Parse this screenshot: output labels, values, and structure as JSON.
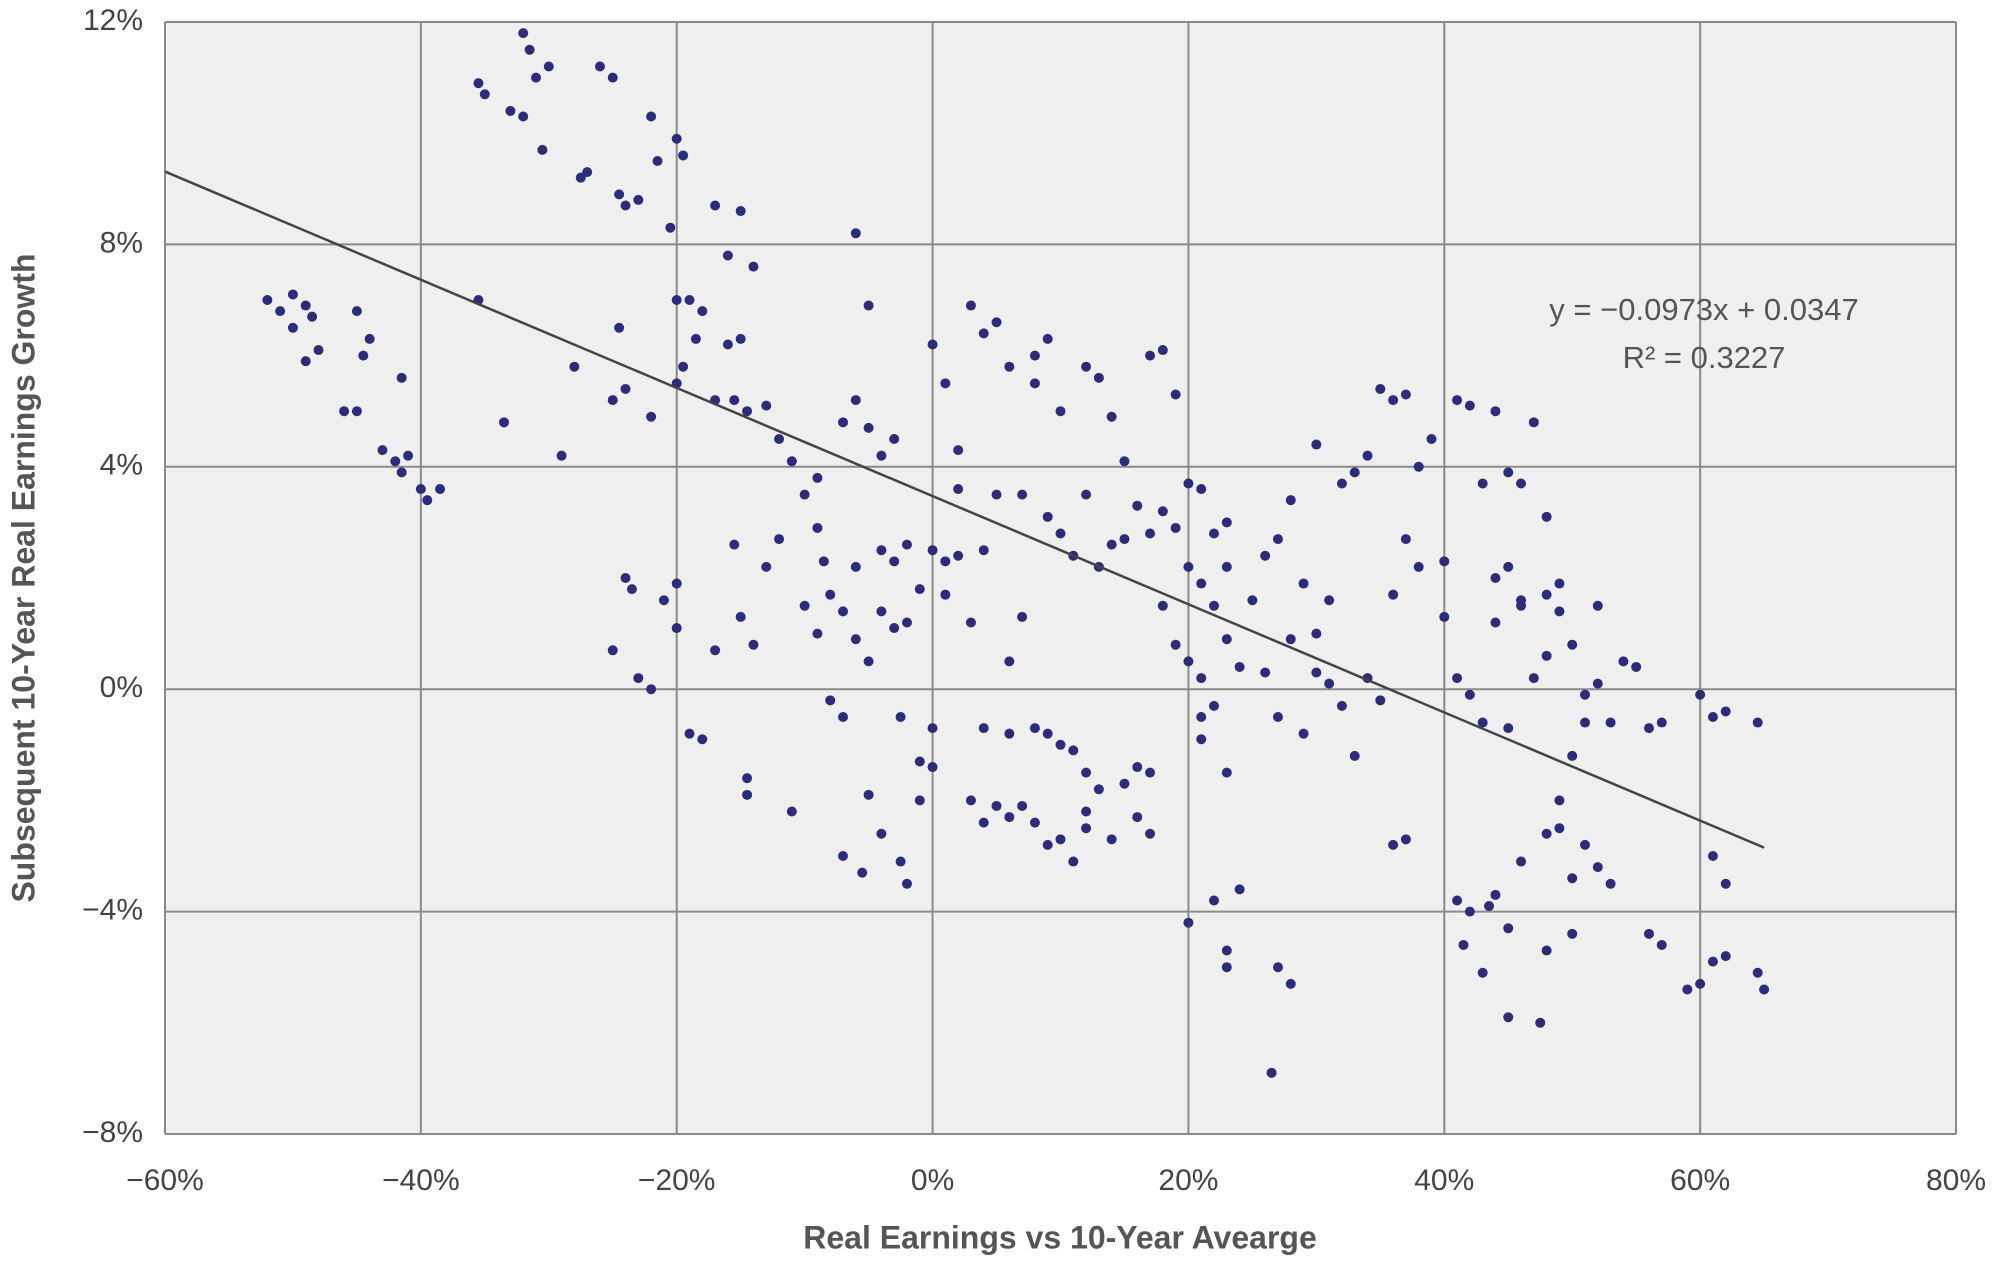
{
  "chart_data": {
    "type": "scatter",
    "xlabel": "Real Earnings vs 10-Year Avearge",
    "ylabel": "Subsequent 10-Year Real Earnings Growth",
    "annotations": [
      "y = −0.0973x + 0.0347",
      "R² = 0.3227"
    ],
    "color": "#2b2d7c",
    "grid": true,
    "xlim": [
      -60,
      80
    ],
    "ylim": [
      -8,
      12
    ],
    "xticks": [
      {
        "value": -60,
        "label": "−60%"
      },
      {
        "value": -40,
        "label": "−40%"
      },
      {
        "value": -20,
        "label": "−20%"
      },
      {
        "value": 0,
        "label": "0%"
      },
      {
        "value": 20,
        "label": "20%"
      },
      {
        "value": 40,
        "label": "40%"
      },
      {
        "value": 60,
        "label": "60%"
      },
      {
        "value": 80,
        "label": "80%"
      }
    ],
    "yticks": [
      {
        "value": -8,
        "label": "−8%"
      },
      {
        "value": -4,
        "label": "−4%"
      },
      {
        "value": 0,
        "label": "0%"
      },
      {
        "value": 4,
        "label": "4%"
      },
      {
        "value": 8,
        "label": "8%"
      },
      {
        "value": 12,
        "label": "12%"
      }
    ],
    "trendline": {
      "color": "#444444",
      "x": [
        -60,
        65
      ],
      "values": [
        9.31,
        -2.85
      ]
    },
    "x": [
      -52,
      -51,
      -50,
      -49,
      -50,
      -49,
      -48,
      -48.5,
      -46,
      -45,
      -44,
      -44.5,
      -43,
      -42,
      -41.5,
      -41,
      -40,
      -39.5,
      -38.5,
      -41.5,
      -45,
      -35.5,
      -35,
      -33,
      -32,
      -31.5,
      -31,
      -30,
      -30.5,
      -32,
      -35.5,
      -33.5,
      -29,
      -27.5,
      -26,
      -25,
      -24.5,
      -24,
      -23,
      -22,
      -21.5,
      -20,
      -19.5,
      -20.5,
      -28,
      -27,
      -24.5,
      -25,
      -24,
      -22,
      -20,
      -19,
      -18.5,
      -19.5,
      -20,
      -18,
      -17,
      -16,
      -15,
      -14,
      -16,
      -15,
      -17,
      -15.5,
      -14.5,
      -13,
      -12,
      -11,
      -24,
      -23.5,
      -25,
      -23,
      -22,
      -21,
      -20,
      -20,
      -19,
      -18,
      -17,
      -15,
      -14.5,
      -14.5,
      -14,
      -15.5,
      -13,
      -11,
      -12,
      -10,
      -9,
      -8.5,
      -8,
      -7,
      -8,
      -7,
      -6,
      -5,
      -6,
      -5,
      -7,
      -4,
      -3,
      -5.5,
      -5,
      -4,
      -2.5,
      -2,
      -2.5,
      -1,
      -1,
      0,
      0,
      -3,
      -2,
      -1,
      0,
      1,
      2,
      0,
      1,
      2,
      3,
      4,
      5,
      6,
      7,
      2,
      4,
      5,
      3,
      4,
      5,
      6,
      7,
      8,
      9,
      10,
      11,
      12,
      12,
      4,
      6,
      8,
      9,
      10,
      11,
      12,
      13,
      14,
      15,
      16,
      16,
      17,
      17,
      8,
      9,
      8,
      10,
      12,
      13,
      14,
      15,
      17,
      18,
      19,
      9,
      10,
      11,
      12,
      13,
      14,
      15,
      16,
      17,
      18,
      19,
      20,
      21,
      22,
      23,
      20,
      21,
      22,
      23,
      18,
      19,
      20,
      21,
      22,
      23,
      24,
      25,
      26,
      27,
      28,
      29,
      30,
      31,
      32,
      33,
      34,
      35,
      36,
      37,
      38,
      39,
      40,
      41,
      42,
      43,
      44,
      45,
      46,
      47,
      48,
      30,
      26,
      27,
      28,
      29,
      30,
      31,
      32,
      33,
      34,
      35,
      36,
      37,
      38,
      36,
      37,
      20,
      21,
      22,
      23,
      24,
      23,
      23,
      27,
      28,
      26.5,
      21,
      41,
      41.5,
      42,
      43,
      43.5,
      44,
      45,
      45,
      46,
      47.5,
      48,
      48,
      49,
      49,
      50,
      50,
      51,
      52,
      53,
      40,
      41,
      42,
      43,
      44,
      45,
      46,
      47,
      48,
      49,
      50,
      50,
      51,
      52,
      52,
      53,
      54,
      55,
      56,
      57,
      44,
      45,
      46,
      48,
      49,
      51,
      56,
      57,
      59,
      60,
      61,
      61,
      62,
      62,
      60,
      61,
      62,
      64.5,
      64.5,
      65,
      -9,
      -10,
      -9,
      -7,
      -6,
      -5,
      -4,
      -3,
      -6,
      -4,
      -2,
      1,
      3,
      6,
      7
    ],
    "values": [
      7,
      6.8,
      7.1,
      6.9,
      6.5,
      5.9,
      6.1,
      6.7,
      5,
      6.8,
      6.3,
      6,
      4.3,
      4.1,
      3.9,
      4.2,
      3.6,
      3.4,
      3.6,
      5.6,
      5,
      10.9,
      10.7,
      10.4,
      10.3,
      11.5,
      11,
      11.2,
      9.7,
      11.8,
      7,
      4.8,
      4.2,
      9.2,
      11.2,
      11,
      8.9,
      8.7,
      8.8,
      10.3,
      9.5,
      9.9,
      9.6,
      8.3,
      5.8,
      9.3,
      6.5,
      5.2,
      5.4,
      4.9,
      7,
      7,
      6.3,
      5.8,
      5.5,
      6.8,
      8.7,
      7.8,
      8.6,
      7.6,
      6.2,
      6.3,
      5.2,
      5.2,
      5,
      5.1,
      4.5,
      4.1,
      2,
      1.8,
      0.7,
      0.2,
      0,
      1.6,
      1.9,
      1.1,
      -0.8,
      -0.9,
      0.7,
      1.3,
      -1.6,
      -1.9,
      0.8,
      2.6,
      2.2,
      -2.2,
      2.7,
      3.5,
      3.8,
      2.3,
      1.7,
      -3,
      -0.2,
      -0.5,
      8.2,
      6.9,
      5.2,
      4.7,
      4.8,
      4.2,
      4.5,
      -3.3,
      -1.9,
      -2.6,
      -3.1,
      -3.5,
      -0.5,
      -1.3,
      -2,
      -1.4,
      -0.7,
      2.3,
      2.6,
      1.8,
      2.5,
      2.3,
      2.4,
      6.2,
      5.5,
      4.3,
      6.9,
      6.4,
      6.6,
      5.8,
      3.5,
      3.6,
      2.5,
      3.5,
      -2,
      -2.4,
      -2.1,
      -2.3,
      -2.1,
      -2.4,
      -2.8,
      -2.7,
      -3.1,
      -2.2,
      -2.5,
      -0.7,
      -0.8,
      -0.7,
      -0.8,
      -1,
      -1.1,
      -1.5,
      -1.8,
      -2.7,
      -1.7,
      -1.4,
      -2.3,
      -1.5,
      -2.6,
      6,
      6.3,
      5.5,
      5,
      5.8,
      5.6,
      4.9,
      4.1,
      6,
      6.1,
      5.3,
      3.1,
      2.8,
      2.4,
      3.5,
      2.2,
      2.6,
      2.7,
      3.3,
      2.8,
      3.2,
      2.9,
      3.7,
      3.6,
      2.8,
      3,
      2.2,
      1.9,
      1.5,
      2.2,
      1.5,
      0.8,
      0.5,
      0.2,
      -0.3,
      0.9,
      0.4,
      1.6,
      2.4,
      2.7,
      3.4,
      1.9,
      1,
      1.6,
      3.7,
      3.9,
      4.2,
      5.4,
      5.2,
      5.3,
      4,
      4.5,
      2.3,
      5.2,
      5.1,
      3.7,
      5,
      3.9,
      3.7,
      4.8,
      3.1,
      4.4,
      0.3,
      -0.5,
      0.9,
      -0.8,
      0.3,
      0.1,
      -0.3,
      -1.2,
      0.2,
      -0.2,
      1.7,
      2.7,
      2.2,
      -2.8,
      -2.7,
      -4.2,
      -0.5,
      -3.8,
      -1.5,
      -3.6,
      -4.7,
      -5,
      -5,
      -5.3,
      -6.9,
      -0.9,
      -3.8,
      -4.6,
      -4,
      -5.1,
      -3.9,
      -3.7,
      -4.3,
      -5.9,
      -3.1,
      -6,
      -2.6,
      -4.7,
      -2.5,
      -2,
      -4.4,
      -3.4,
      -2.8,
      -3.2,
      -3.5,
      1.3,
      0.2,
      -0.1,
      -0.6,
      1.2,
      -0.7,
      1.5,
      0.2,
      0.6,
      1.9,
      -1.2,
      0.8,
      -0.6,
      0.1,
      1.5,
      -0.6,
      0.5,
      0.4,
      -0.7,
      -0.6,
      2,
      2.2,
      1.6,
      1.7,
      1.4,
      -0.1,
      -4.4,
      -4.6,
      -5.4,
      -5.3,
      -3,
      -4.9,
      -4.8,
      -3.5,
      -0.1,
      -0.5,
      -0.4,
      -0.6,
      -5.1,
      -5.4,
      2.9,
      1.5,
      1,
      1.4,
      0.9,
      0.5,
      1.4,
      1.1,
      2.2,
      2.5,
      1.2,
      1.7,
      1.2,
      0.5,
      1.3
    ]
  }
}
